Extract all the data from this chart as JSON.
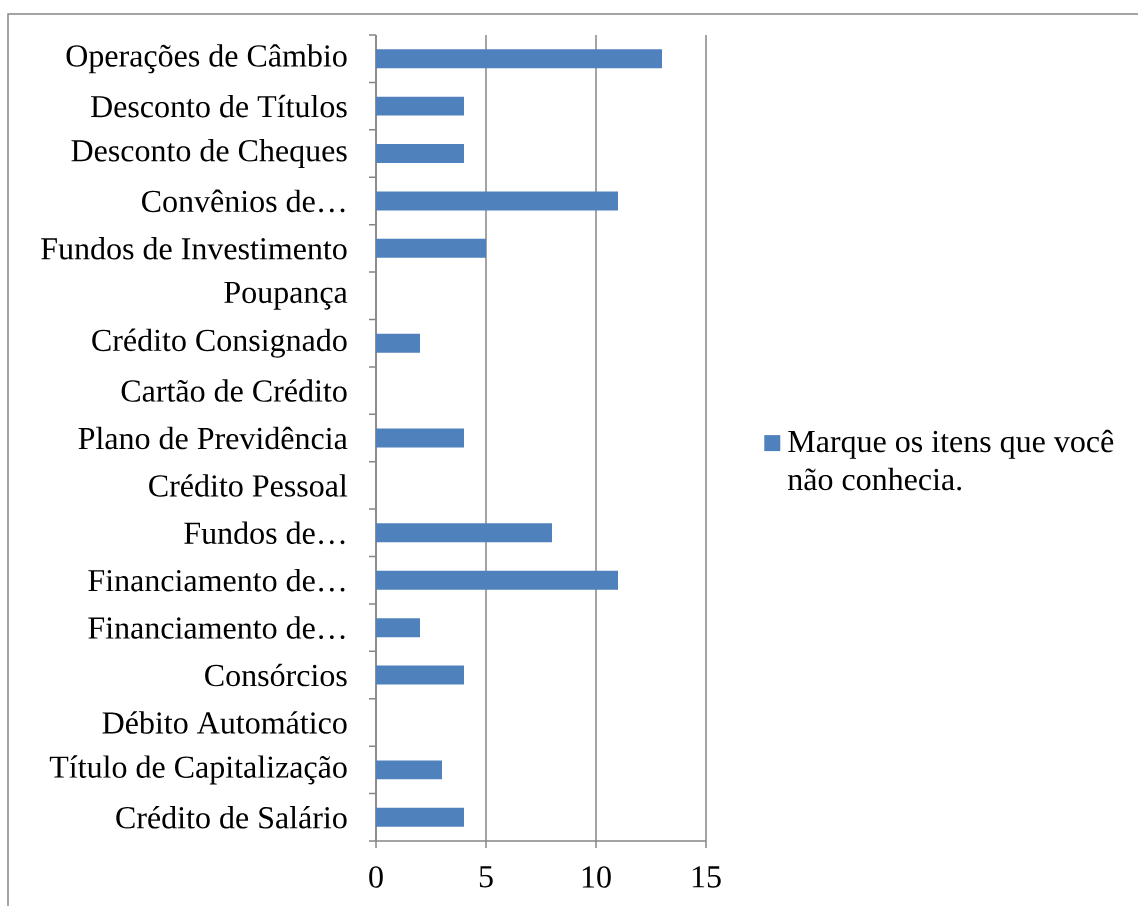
{
  "chart_data": {
    "type": "bar",
    "orientation": "horizontal",
    "categories": [
      "Operações de Câmbio",
      "Desconto de Títulos",
      "Desconto de Cheques",
      "Convênios de…",
      "Fundos de Investimento",
      "Poupança",
      "Crédito Consignado",
      "Cartão de Crédito",
      "Plano de Previdência",
      "Crédito Pessoal",
      "Fundos de…",
      "Financiamento de…",
      "Financiamento de…",
      "Consórcios",
      "Débito Automático",
      "Título de Capitalização",
      "Crédito de Salário"
    ],
    "series": [
      {
        "name": "Marque os itens que você não conhecia.",
        "color": "#4f81bd",
        "values": [
          13,
          4,
          4,
          11,
          5,
          0,
          2,
          0,
          4,
          0,
          8,
          11,
          2,
          4,
          0,
          3,
          4
        ]
      }
    ],
    "xlim": [
      0,
      15
    ],
    "xticks": [
      0,
      5,
      10,
      15
    ],
    "grid": "x",
    "legend": "right"
  }
}
